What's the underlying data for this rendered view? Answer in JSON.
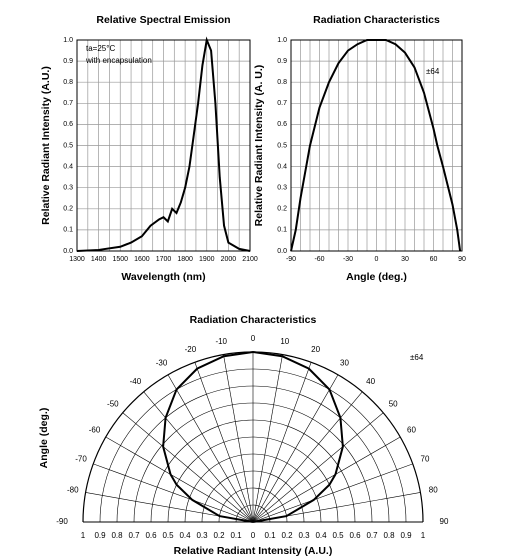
{
  "chart_data": [
    {
      "type": "line",
      "title": "Relative Spectral Emission",
      "x_label": "Wavelength (nm)",
      "y_label": "Relative Radiant Intensity (A.U.)",
      "annotations": [
        "ta=25°C",
        "with encapsulation"
      ],
      "color": "#000000",
      "x": [
        1300,
        1400,
        1500,
        1550,
        1600,
        1640,
        1680,
        1700,
        1720,
        1740,
        1760,
        1780,
        1800,
        1820,
        1840,
        1860,
        1880,
        1900,
        1920,
        1940,
        1960,
        1980,
        2000,
        2050,
        2100
      ],
      "values": [
        0,
        0.005,
        0.02,
        0.04,
        0.07,
        0.12,
        0.15,
        0.16,
        0.14,
        0.2,
        0.18,
        0.23,
        0.3,
        0.4,
        0.55,
        0.7,
        0.88,
        1.0,
        0.95,
        0.7,
        0.35,
        0.12,
        0.04,
        0.01,
        0
      ],
      "xlim": [
        1300,
        2100
      ],
      "ylim": [
        0,
        1
      ],
      "xticks": [
        1300,
        1400,
        1500,
        1600,
        1700,
        1800,
        1900,
        2000,
        2100
      ],
      "xgrid": [
        1350,
        1450,
        1550,
        1650,
        1750,
        1850,
        1950,
        2050
      ],
      "yticks": [
        {
          "value": 0,
          "label": "0.0"
        },
        0.1,
        0.2,
        0.3,
        0.4,
        0.5,
        0.6,
        0.7,
        0.8,
        0.9,
        {
          "value": 1,
          "label": "1.0"
        }
      ],
      "grid": true
    },
    {
      "type": "line",
      "title": "Radiation Characteristics",
      "x_label": "Angle (deg.)",
      "y_label": "Relative Radiant Intensity (A. U.)",
      "annotations": [
        "±64"
      ],
      "color": "#000000",
      "x": [
        -90,
        -85,
        -80,
        -70,
        -60,
        -50,
        -40,
        -30,
        -20,
        -10,
        0,
        10,
        20,
        30,
        40,
        50,
        60,
        64,
        70,
        80,
        85,
        88
      ],
      "values": [
        0,
        0.1,
        0.25,
        0.5,
        0.68,
        0.8,
        0.89,
        0.95,
        0.98,
        1.0,
        1.0,
        1.0,
        0.98,
        0.94,
        0.87,
        0.75,
        0.58,
        0.5,
        0.4,
        0.22,
        0.1,
        0
      ],
      "xlim": [
        -90,
        90
      ],
      "ylim": [
        0,
        1
      ],
      "xticks": [
        -90,
        -60,
        -30,
        0,
        30,
        60,
        90
      ],
      "xgrid": [
        -80,
        -70,
        -50,
        -40,
        -20,
        -10,
        10,
        20,
        40,
        50,
        70,
        80
      ],
      "yticks": [
        {
          "value": 0,
          "label": "0.0"
        },
        0.1,
        0.2,
        0.3,
        0.4,
        0.5,
        0.6,
        0.7,
        0.8,
        0.9,
        {
          "value": 1,
          "label": "1.0"
        }
      ],
      "grid": true
    },
    {
      "type": "polar",
      "title": "Radiation Characteristics",
      "x_label": "Relative Radiant Intensity (A.U.)",
      "y_label": "Angle (deg.)",
      "annotations": [
        "±64"
      ],
      "color": "#000000",
      "angles": [
        -90,
        -80,
        -70,
        -64,
        -60,
        -50,
        -40,
        -30,
        -20,
        -10,
        0,
        10,
        20,
        30,
        40,
        50,
        60,
        64,
        70,
        80,
        90
      ],
      "values": [
        0,
        0.2,
        0.38,
        0.5,
        0.56,
        0.69,
        0.8,
        0.9,
        0.96,
        0.99,
        1,
        0.99,
        0.96,
        0.9,
        0.8,
        0.69,
        0.56,
        0.5,
        0.38,
        0.2,
        0
      ],
      "angle_ticks": [
        -90,
        -80,
        -70,
        -60,
        -50,
        -40,
        -30,
        -20,
        -10,
        0,
        10,
        20,
        30,
        40,
        50,
        60,
        70,
        80,
        90
      ],
      "rlim": [
        0,
        1
      ],
      "rticks": [
        0,
        0.1,
        0.2,
        0.3,
        0.4,
        0.5,
        0.6,
        0.7,
        0.8,
        0.9,
        1
      ],
      "grid": true
    }
  ]
}
